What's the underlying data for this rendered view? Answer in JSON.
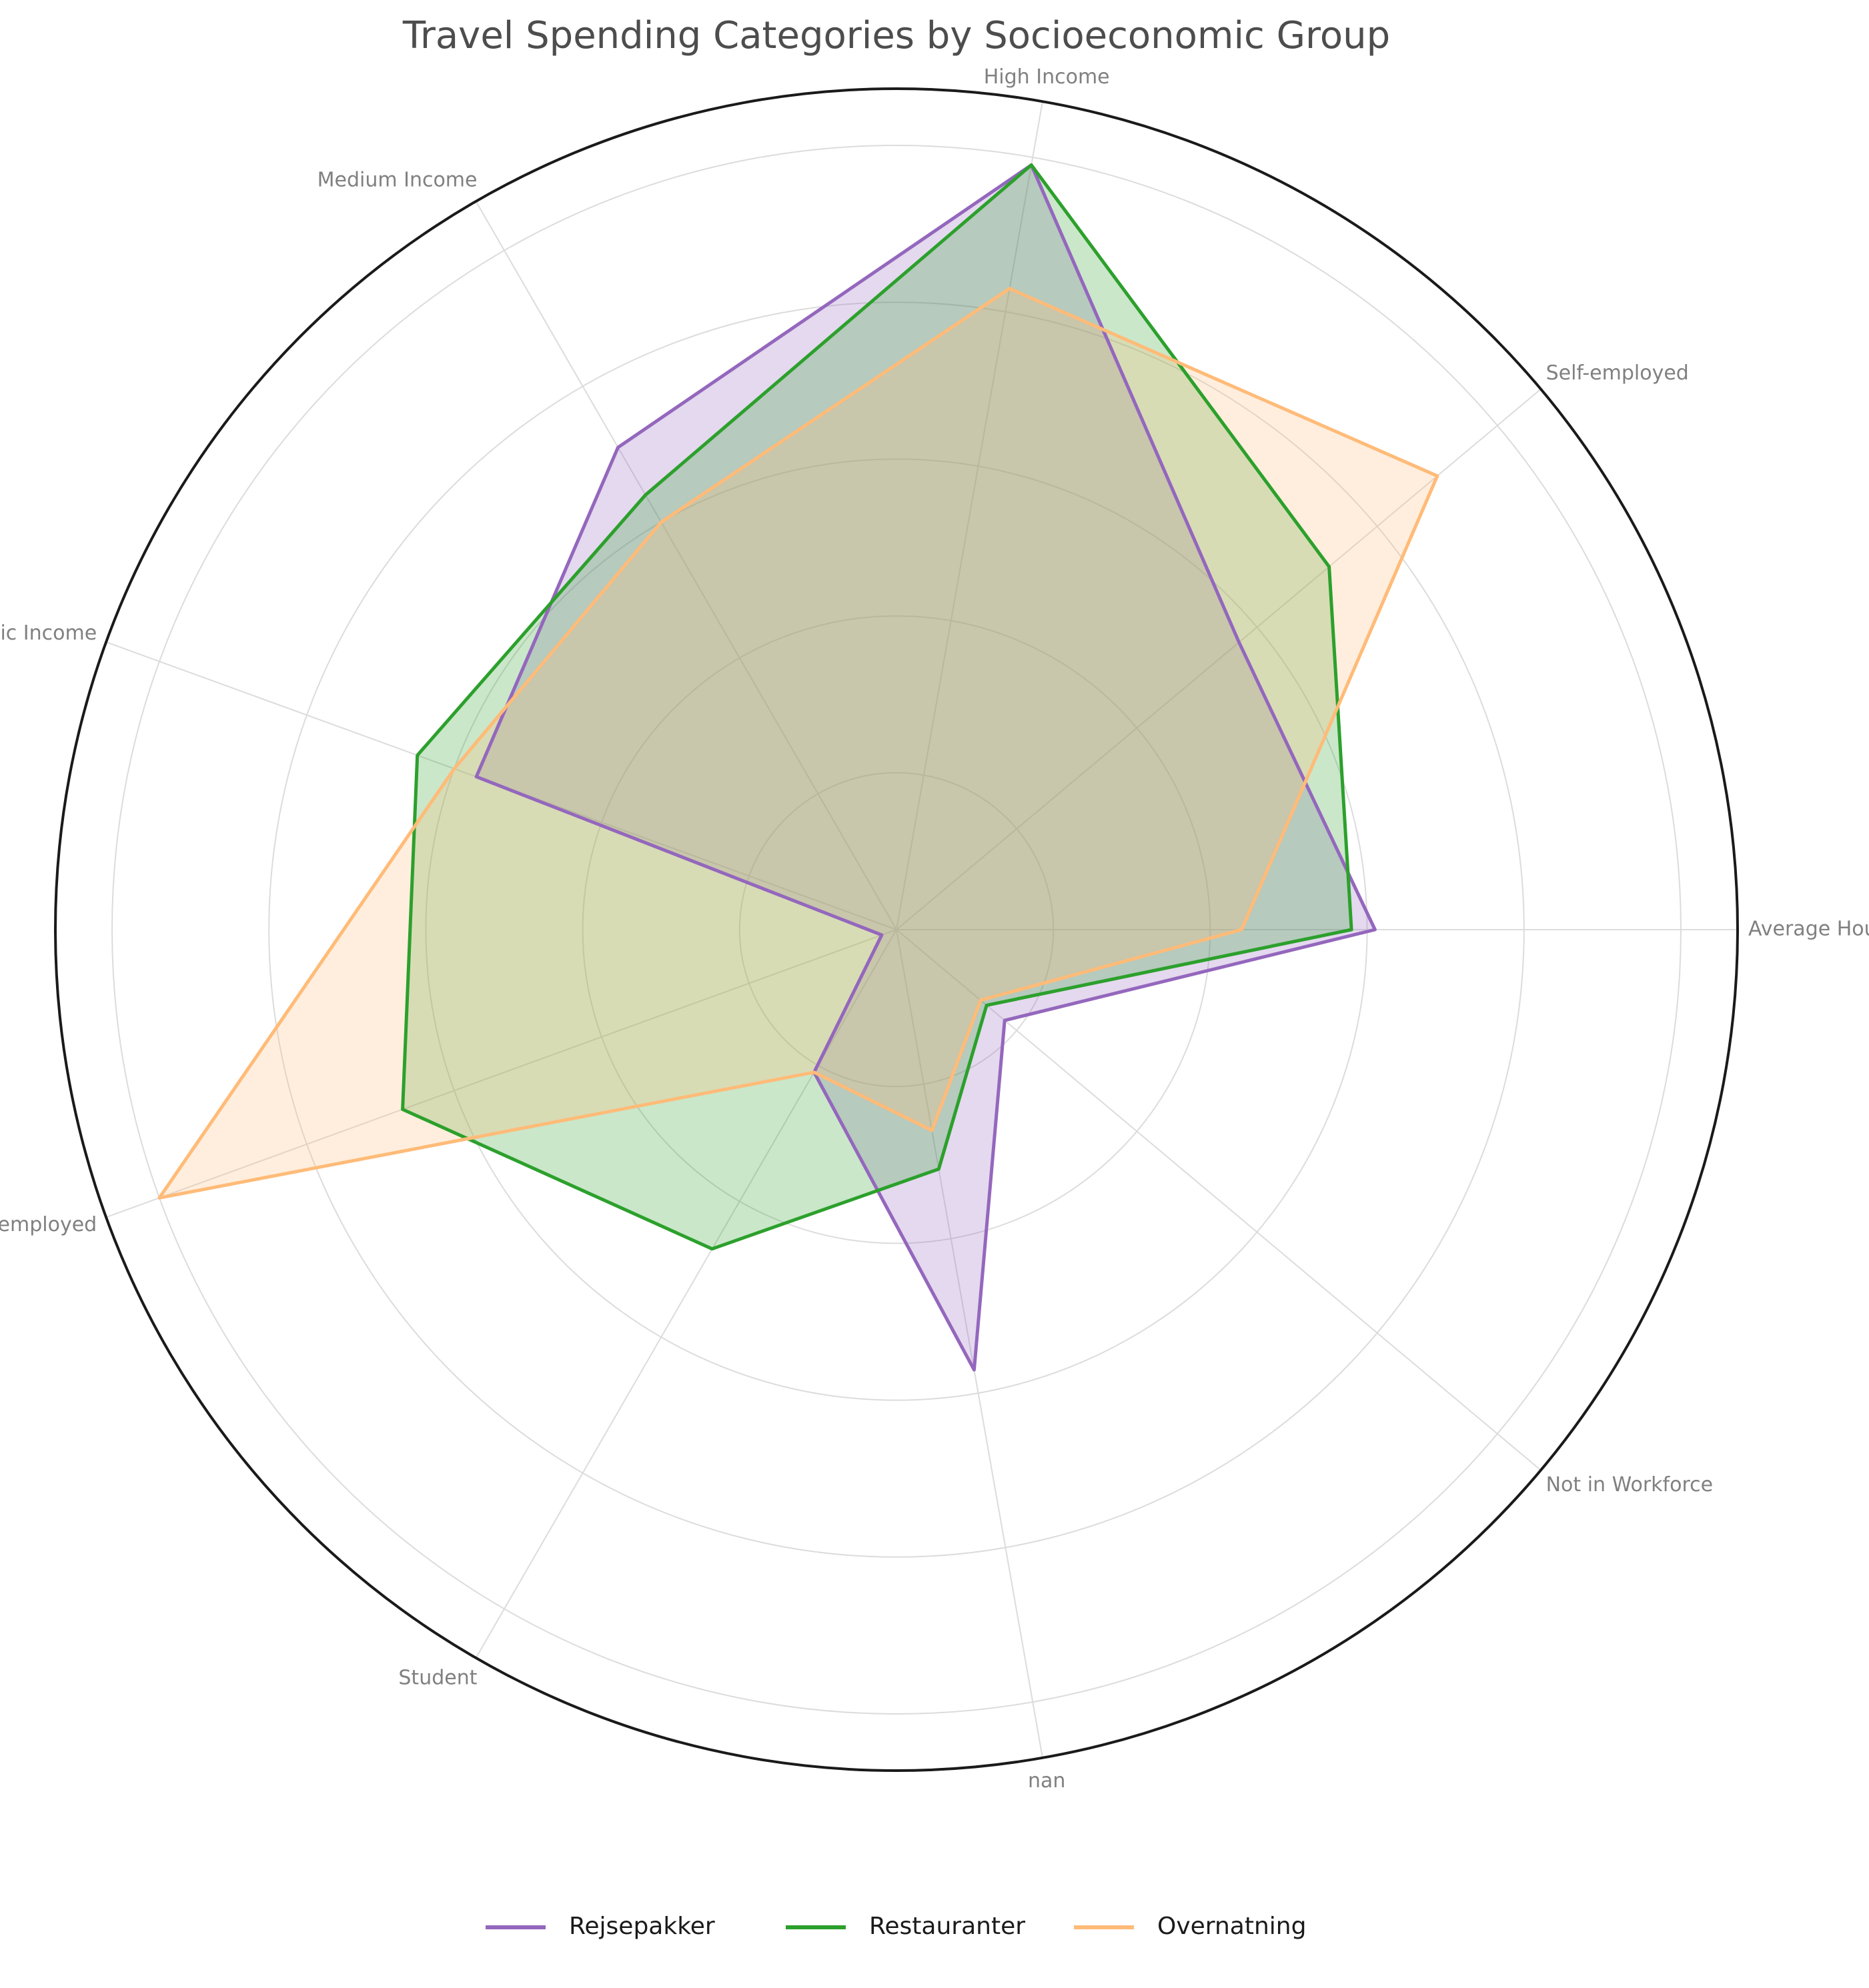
{
  "chart_data": {
    "type": "radar",
    "title": "Travel Spending Categories by Socioeconomic Group",
    "categories": [
      "Average Household",
      "Self-employed",
      "High Income",
      "Medium Income",
      "Basic Income",
      "Unemployed",
      "Student",
      "nan",
      "Not in Workforce"
    ],
    "rlim": [
      0,
      1
    ],
    "grid": true,
    "legend_position": "bottom-center",
    "series": [
      {
        "name": "Rejsepakker",
        "color": "#9467bd",
        "values": [
          0.61,
          0.57,
          0.99,
          0.71,
          0.57,
          0.02,
          0.21,
          0.57,
          0.18
        ]
      },
      {
        "name": "Restauranter",
        "color": "#2ca02c",
        "values": [
          0.58,
          0.72,
          0.99,
          0.64,
          0.65,
          0.67,
          0.47,
          0.31,
          0.15
        ]
      },
      {
        "name": "Overnatning",
        "color": "#ffbb78",
        "values": [
          0.44,
          0.9,
          0.83,
          0.6,
          0.6,
          1.0,
          0.21,
          0.26,
          0.14
        ]
      }
    ]
  }
}
